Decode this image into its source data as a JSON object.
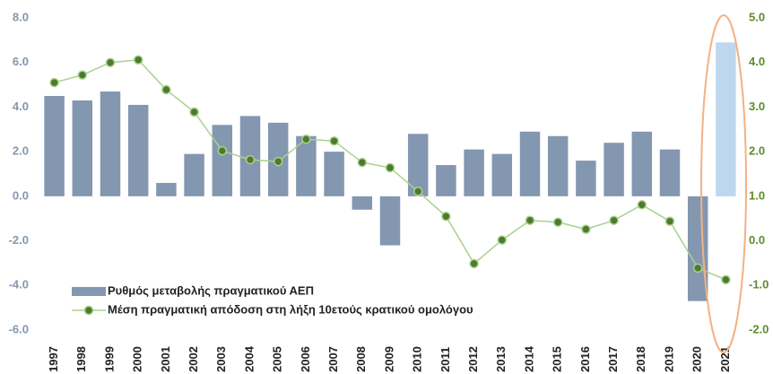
{
  "chart_data": {
    "type": "bar_line",
    "categories": [
      "1997",
      "1998",
      "1999",
      "2000",
      "2001",
      "2002",
      "2003",
      "2004",
      "2005",
      "2006",
      "2007",
      "2008",
      "2009",
      "2010",
      "2011",
      "2012",
      "2013",
      "2014",
      "2015",
      "2016",
      "2017",
      "2018",
      "2019",
      "2020",
      "2021"
    ],
    "series": [
      {
        "name": "Ρυθμός μεταβολής πραγματικού  ΑΕΠ",
        "type": "bar",
        "color": "#8497b0",
        "colors": [
          "#8497b0",
          "#8497b0",
          "#8497b0",
          "#8497b0",
          "#8497b0",
          "#8497b0",
          "#8497b0",
          "#8497b0",
          "#8497b0",
          "#8497b0",
          "#8497b0",
          "#8497b0",
          "#8497b0",
          "#8497b0",
          "#8497b0",
          "#8497b0",
          "#8497b0",
          "#8497b0",
          "#8497b0",
          "#8497b0",
          "#8497b0",
          "#8497b0",
          "#8497b0",
          "#8497b0",
          "#bdd7ee"
        ],
        "values": [
          4.5,
          4.3,
          4.7,
          4.1,
          0.6,
          1.9,
          3.2,
          3.6,
          3.3,
          2.7,
          2.0,
          -0.6,
          -2.2,
          2.8,
          1.4,
          2.1,
          1.9,
          2.9,
          2.7,
          1.6,
          2.4,
          2.9,
          2.1,
          -4.7,
          6.9
        ]
      },
      {
        "name": "Μέση πραγματική απόδοση στη λήξη 10ετούς κρατικού ομολόγου",
        "type": "line",
        "axis": "y2",
        "color": "#a9d18e",
        "marker_color": "#4e7a2e",
        "values": [
          3.55,
          3.72,
          4.0,
          4.06,
          3.39,
          2.89,
          2.02,
          1.82,
          1.78,
          2.28,
          2.24,
          1.76,
          1.64,
          1.11,
          0.55,
          -0.51,
          0.02,
          0.46,
          0.42,
          0.26,
          0.46,
          0.81,
          0.44,
          -0.61,
          -0.87
        ]
      }
    ],
    "ylim": [
      -6,
      8
    ],
    "yticks": [
      {
        "value": -6,
        "label": "-6.0"
      },
      {
        "value": -4,
        "label": "-4.0"
      },
      {
        "value": -2,
        "label": "-2.0"
      },
      {
        "value": 0,
        "label": "0.0"
      },
      {
        "value": 2,
        "label": "2.0"
      },
      {
        "value": 4,
        "label": "4.0"
      },
      {
        "value": 6,
        "label": "6.0"
      },
      {
        "value": 8,
        "label": "8.0"
      }
    ],
    "y2lim": [
      -2,
      5
    ],
    "y2ticks": [
      {
        "value": -2,
        "label": "-2.0"
      },
      {
        "value": -1,
        "label": "-1.0"
      },
      {
        "value": 0,
        "label": "0.0"
      },
      {
        "value": 1,
        "label": "1.0"
      },
      {
        "value": 2,
        "label": "2.0"
      },
      {
        "value": 3,
        "label": "3.0"
      },
      {
        "value": 4,
        "label": "4.0"
      },
      {
        "value": 5,
        "label": "5.0"
      }
    ],
    "grid": false,
    "legend": "lower left"
  }
}
